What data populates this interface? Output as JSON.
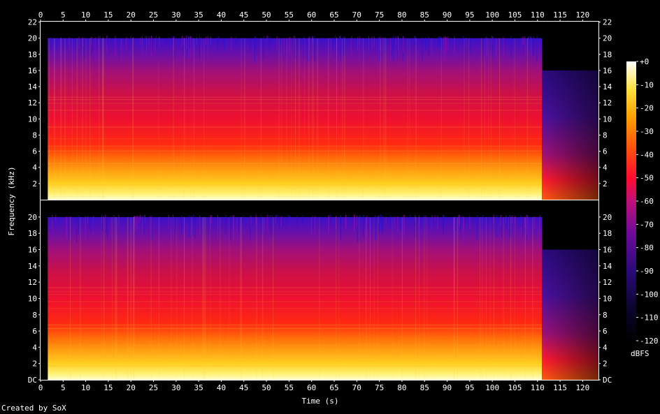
{
  "chart_data": {
    "type": "heatmap",
    "title": "",
    "xlabel": "Time (s)",
    "ylabel": "Frequency (kHz)",
    "xlim": [
      0,
      123.5
    ],
    "ylim_khz": [
      0,
      22.05
    ],
    "x_ticks": [
      0,
      5,
      10,
      15,
      20,
      25,
      30,
      35,
      40,
      45,
      50,
      55,
      60,
      65,
      70,
      75,
      80,
      85,
      90,
      95,
      100,
      105,
      110,
      115,
      120
    ],
    "y_ticks_khz": [
      0,
      2,
      4,
      6,
      8,
      10,
      12,
      14,
      16,
      18,
      20,
      22
    ],
    "y_tick_labels": [
      "DC",
      "2",
      "4",
      "6",
      "8",
      "10",
      "12",
      "14",
      "16",
      "18",
      "20",
      "22"
    ],
    "channels": [
      {
        "channel": 1,
        "audio_start_s": 1.6,
        "music_end_s": 111.0,
        "bandwidth_khz": 20.0,
        "tail_bandwidth_khz": 16.0,
        "fade_out_end_s": 123.5
      },
      {
        "channel": 2,
        "audio_start_s": 1.6,
        "music_end_s": 111.0,
        "bandwidth_khz": 20.0,
        "tail_bandwidth_khz": 16.0,
        "fade_out_end_s": 123.5
      }
    ],
    "colorbar": {
      "label": "dBFS",
      "ticks": [
        "+0",
        "-10",
        "-20",
        "-30",
        "-40",
        "-50",
        "-60",
        "-70",
        "-80",
        "-90",
        "-100",
        "-110",
        "-120"
      ],
      "range_db": [
        -120,
        0
      ]
    },
    "colors": {
      "background": "#000000",
      "frame": "#ffffff"
    }
  },
  "credit": "Created by SoX"
}
